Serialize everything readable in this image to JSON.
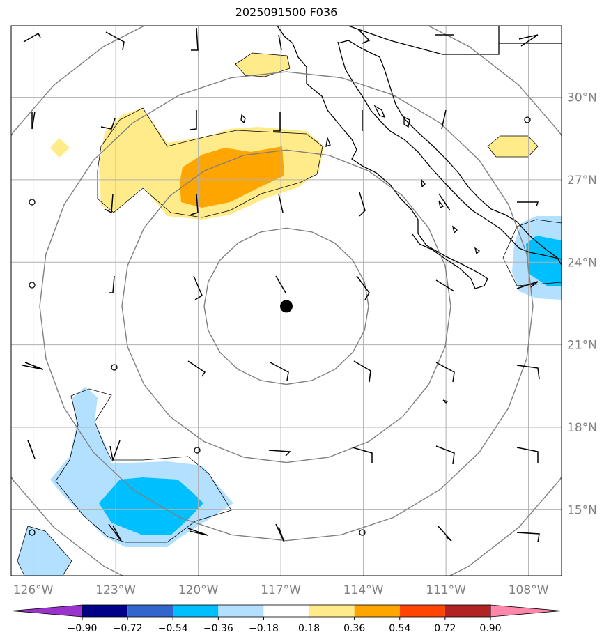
{
  "title": "2025091500 F036",
  "map": {
    "lon_range": [
      -126.8,
      -106.8
    ],
    "lat_range": [
      12.6,
      32.6
    ],
    "storm_center": {
      "lon": -116.8,
      "lat": 22.4
    },
    "range_rings": 4,
    "lon_ticks": [
      {
        "lon": -126,
        "label": "126°W"
      },
      {
        "lon": -123,
        "label": "123°W"
      },
      {
        "lon": -120,
        "label": "120°W"
      },
      {
        "lon": -117,
        "label": "117°W"
      },
      {
        "lon": -114,
        "label": "114°W"
      },
      {
        "lon": -111,
        "label": "111°W"
      },
      {
        "lon": -108,
        "label": "108°W"
      }
    ],
    "lat_ticks": [
      {
        "lat": 30,
        "label": "30°N"
      },
      {
        "lat": 27,
        "label": "27°N"
      },
      {
        "lat": 24,
        "label": "24°N"
      },
      {
        "lat": 21,
        "label": "21°N"
      },
      {
        "lat": 18,
        "label": "18°N"
      },
      {
        "lat": 15,
        "label": "15°N"
      }
    ]
  },
  "colorbar": {
    "colors": [
      "#9933cc",
      "#000088",
      "#3366cc",
      "#00bfff",
      "#b3e0ff",
      "#ffffff",
      "#ffeb8a",
      "#ffa500",
      "#ff4500",
      "#b22222",
      "#ff88aa"
    ],
    "labels": [
      "−0.90",
      "−0.72",
      "−0.54",
      "−0.36",
      "−0.18",
      "0.18",
      "0.36",
      "0.54",
      "0.72",
      "0.90"
    ]
  },
  "colors": {
    "ring": "#808080",
    "grid": "#b0b0b0",
    "positive_low": "#ffeb8a",
    "positive_mid": "#ffa500",
    "negative_low": "#b3e0ff",
    "negative_mid": "#00bfff"
  }
}
